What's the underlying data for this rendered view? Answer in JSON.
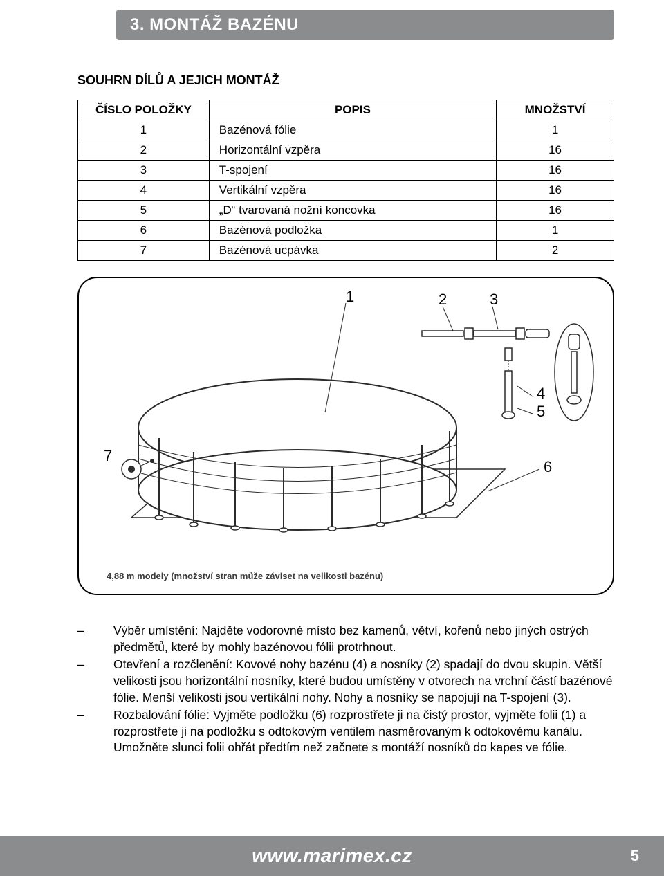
{
  "header": {
    "title": "3. MONTÁŽ BAZÉNU",
    "subtitle": "SOUHRN DÍLŮ A JEJICH MONTÁŽ"
  },
  "table": {
    "columns": [
      "ČÍSLO POLOŽKY",
      "POPIS",
      "MNOŽSTVÍ"
    ],
    "rows": [
      [
        "1",
        "Bazénová fólie",
        "1"
      ],
      [
        "2",
        "Horizontální vzpěra",
        "16"
      ],
      [
        "3",
        "T-spojení",
        "16"
      ],
      [
        "4",
        "Vertikální vzpěra",
        "16"
      ],
      [
        "5",
        "„D“ tvarovaná nožní koncovka",
        "16"
      ],
      [
        "6",
        "Bazénová podložka",
        "1"
      ],
      [
        "7",
        "Bazénová ucpávka",
        "2"
      ]
    ]
  },
  "diagram": {
    "caption": "4,88 m modely (množství stran může záviset na velikosti bazénu)",
    "labels": {
      "l1": "1",
      "l2": "2",
      "l3": "3",
      "l4": "4",
      "l5": "5",
      "l6": "6",
      "l7": "7"
    },
    "colors": {
      "stroke": "#2b2b2b",
      "fill": "#ffffff",
      "shade": "#bdbdbd"
    }
  },
  "bullets": [
    "Výběr umístění: Najděte vodorovné místo bez kamenů, větví, kořenů nebo jiných ostrých předmětů, které by mohly bazénovou fólii protrhnout.",
    "Otevření a rozčlenění: Kovové nohy bazénu (4) a nosníky (2) spadají do dvou skupin. Větší velikosti jsou horizontální nosníky, které budou umístěny v otvorech na vrchní částí bazénové fólie. Menší velikosti jsou vertikální nohy. Nohy a nosníky se napojují na T-spojení (3).",
    "Rozbalování fólie: Vyjměte podložku (6) rozprostřete ji na čistý prostor, vyjměte folii (1) a rozprostřete ji na podložku s odtokovým ventilem nasměrovaným k odtokovému kanálu. Umožněte slunci folii ohřát předtím než začnete s montáží nosníků do kapes ve fólie."
  ],
  "footer": {
    "url": "www.marimex.cz",
    "page": "5"
  }
}
